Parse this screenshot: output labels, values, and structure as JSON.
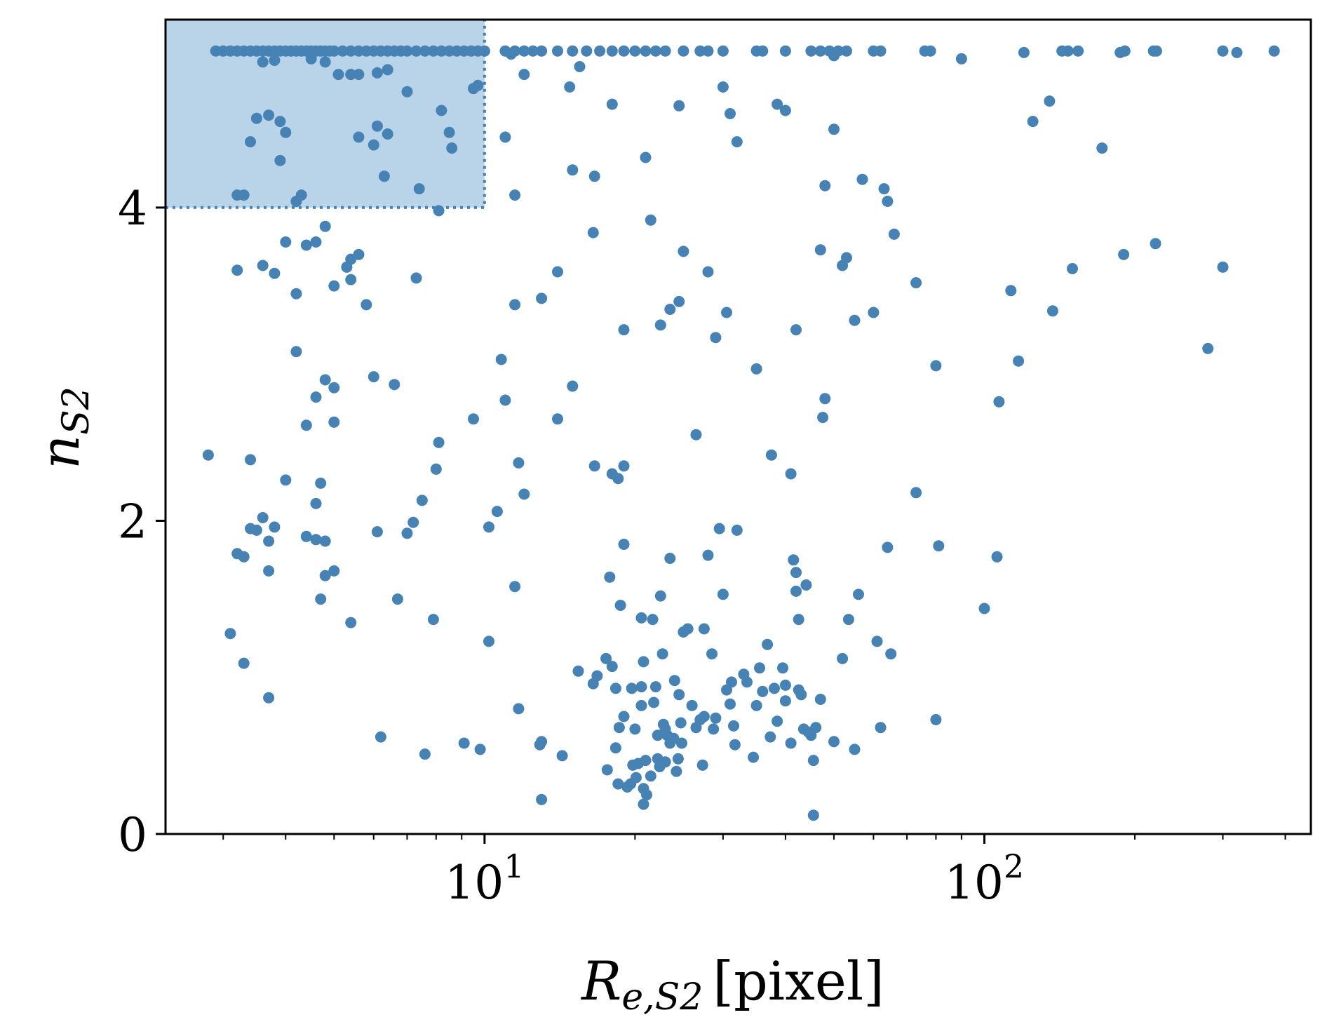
{
  "colors": {
    "points": "#4682b4",
    "region_fill": "#b9d3e8",
    "region_line": "#4682b4",
    "axis": "#000000",
    "background": "#ffffff"
  },
  "chart_data": {
    "type": "scatter",
    "xscale": "log",
    "xlim": [
      2.3,
      450
    ],
    "ylim": [
      0,
      5.2
    ],
    "grid": false,
    "legend": "none",
    "xlabel": {
      "main": "R",
      "sub": "e,S2",
      "unit": "[pixel]"
    },
    "ylabel": {
      "main": "n",
      "sub": "S2"
    },
    "xticks": [
      {
        "value": 10,
        "base": "10",
        "exp": "1"
      },
      {
        "value": 100,
        "base": "10",
        "exp": "2"
      }
    ],
    "yticks": [
      {
        "value": 0,
        "label": "0"
      },
      {
        "value": 2,
        "label": "2"
      },
      {
        "value": 4,
        "label": "4"
      }
    ],
    "highlight_region": {
      "x": [
        2.3,
        10
      ],
      "y": [
        4,
        5.2
      ]
    },
    "points": [
      [
        2.9,
        5.0
      ],
      [
        3.0,
        5.0
      ],
      [
        3.1,
        5.0
      ],
      [
        3.2,
        5.0
      ],
      [
        3.3,
        5.0
      ],
      [
        3.4,
        5.0
      ],
      [
        3.5,
        5.0
      ],
      [
        3.6,
        5.0
      ],
      [
        3.7,
        5.0
      ],
      [
        3.8,
        5.0
      ],
      [
        3.9,
        5.0
      ],
      [
        4.0,
        5.0
      ],
      [
        4.1,
        5.0
      ],
      [
        4.2,
        5.0
      ],
      [
        4.3,
        5.0
      ],
      [
        4.4,
        5.0
      ],
      [
        4.5,
        5.0
      ],
      [
        4.6,
        5.0
      ],
      [
        4.7,
        5.0
      ],
      [
        4.8,
        5.0
      ],
      [
        4.9,
        5.0
      ],
      [
        5.0,
        5.0
      ],
      [
        5.2,
        5.0
      ],
      [
        5.4,
        5.0
      ],
      [
        5.6,
        5.0
      ],
      [
        5.8,
        5.0
      ],
      [
        6.0,
        5.0
      ],
      [
        6.2,
        5.0
      ],
      [
        6.4,
        5.0
      ],
      [
        6.6,
        5.0
      ],
      [
        6.8,
        5.0
      ],
      [
        7.0,
        5.0
      ],
      [
        7.3,
        5.0
      ],
      [
        7.6,
        5.0
      ],
      [
        7.9,
        5.0
      ],
      [
        8.2,
        5.0
      ],
      [
        8.5,
        5.0
      ],
      [
        8.8,
        5.0
      ],
      [
        9.1,
        5.0
      ],
      [
        9.4,
        5.0
      ],
      [
        9.7,
        5.0
      ],
      [
        10.0,
        5.0
      ],
      [
        11.0,
        5.0
      ],
      [
        11.5,
        5.0
      ],
      [
        12.0,
        5.0
      ],
      [
        12.5,
        5.0
      ],
      [
        13.0,
        5.0
      ],
      [
        14.0,
        5.0
      ],
      [
        15.0,
        5.0
      ],
      [
        16.0,
        5.0
      ],
      [
        17.0,
        5.0
      ],
      [
        18.0,
        5.0
      ],
      [
        19.0,
        5.0
      ],
      [
        20.0,
        5.0
      ],
      [
        21.0,
        5.0
      ],
      [
        22.0,
        5.0
      ],
      [
        23.0,
        5.0
      ],
      [
        25.0,
        5.0
      ],
      [
        27.0,
        5.0
      ],
      [
        28.0,
        5.0
      ],
      [
        30.0,
        5.0
      ],
      [
        35.0,
        5.0
      ],
      [
        36.0,
        5.0
      ],
      [
        40.0,
        5.0
      ],
      [
        45.0,
        5.0
      ],
      [
        47.0,
        5.0
      ],
      [
        49.0,
        5.0
      ],
      [
        51.0,
        5.0
      ],
      [
        53.0,
        5.0
      ],
      [
        60.0,
        5.0
      ],
      [
        62.0,
        5.0
      ],
      [
        76.0,
        5.0
      ],
      [
        78.0,
        5.0
      ],
      [
        120.0,
        4.99
      ],
      [
        143.0,
        5.0
      ],
      [
        147.0,
        5.0
      ],
      [
        154.0,
        5.0
      ],
      [
        187.0,
        4.99
      ],
      [
        191.0,
        5.0
      ],
      [
        218.0,
        5.0
      ],
      [
        221.0,
        5.0
      ],
      [
        300.0,
        5.0
      ],
      [
        320.0,
        4.99
      ],
      [
        380.0,
        5.0
      ],
      [
        3.6,
        4.93
      ],
      [
        3.8,
        4.94
      ],
      [
        4.5,
        4.95
      ],
      [
        4.8,
        4.93
      ],
      [
        5.1,
        4.85
      ],
      [
        5.4,
        4.85
      ],
      [
        5.6,
        4.85
      ],
      [
        6.1,
        4.86
      ],
      [
        6.4,
        4.88
      ],
      [
        9.5,
        4.76
      ],
      [
        9.7,
        4.78
      ],
      [
        11.3,
        4.98
      ],
      [
        12.0,
        4.85
      ],
      [
        14.8,
        4.77
      ],
      [
        15.5,
        4.9
      ],
      [
        50.0,
        4.97
      ],
      [
        90.0,
        4.95
      ],
      [
        3.5,
        4.57
      ],
      [
        3.7,
        4.59
      ],
      [
        3.9,
        4.55
      ],
      [
        4.0,
        4.48
      ],
      [
        5.6,
        4.45
      ],
      [
        6.0,
        4.4
      ],
      [
        6.1,
        4.52
      ],
      [
        6.3,
        4.2
      ],
      [
        6.4,
        4.47
      ],
      [
        7.0,
        4.74
      ],
      [
        8.2,
        4.62
      ],
      [
        8.5,
        4.48
      ],
      [
        8.6,
        4.38
      ],
      [
        3.2,
        4.08
      ],
      [
        3.3,
        4.08
      ],
      [
        3.4,
        4.42
      ],
      [
        3.9,
        4.3
      ],
      [
        4.2,
        4.04
      ],
      [
        4.3,
        4.08
      ],
      [
        7.4,
        4.12
      ],
      [
        8.1,
        3.98
      ],
      [
        11.0,
        4.45
      ],
      [
        11.5,
        4.08
      ],
      [
        15.0,
        4.24
      ],
      [
        16.6,
        4.2
      ],
      [
        18.0,
        4.66
      ],
      [
        21.0,
        4.32
      ],
      [
        24.5,
        4.65
      ],
      [
        30.0,
        4.77
      ],
      [
        31.0,
        4.6
      ],
      [
        32.0,
        4.42
      ],
      [
        38.5,
        4.66
      ],
      [
        40.0,
        4.62
      ],
      [
        48.0,
        4.14
      ],
      [
        50.0,
        4.5
      ],
      [
        57.0,
        4.18
      ],
      [
        63.0,
        4.12
      ],
      [
        64.0,
        4.04
      ],
      [
        125.0,
        4.55
      ],
      [
        135.0,
        4.68
      ],
      [
        172.0,
        4.38
      ],
      [
        3.2,
        3.6
      ],
      [
        3.6,
        3.63
      ],
      [
        3.8,
        3.58
      ],
      [
        4.0,
        3.78
      ],
      [
        4.2,
        3.45
      ],
      [
        4.4,
        3.76
      ],
      [
        4.6,
        3.78
      ],
      [
        4.8,
        3.88
      ],
      [
        5.0,
        3.5
      ],
      [
        5.3,
        3.62
      ],
      [
        5.4,
        3.67
      ],
      [
        5.6,
        3.7
      ],
      [
        5.8,
        3.38
      ],
      [
        5.4,
        3.54
      ],
      [
        7.3,
        3.55
      ],
      [
        11.5,
        3.38
      ],
      [
        13.0,
        3.42
      ],
      [
        14.0,
        3.59
      ],
      [
        16.5,
        3.84
      ],
      [
        19.0,
        3.22
      ],
      [
        21.5,
        3.92
      ],
      [
        22.5,
        3.25
      ],
      [
        23.5,
        3.35
      ],
      [
        24.5,
        3.4
      ],
      [
        25.0,
        3.72
      ],
      [
        28.0,
        3.59
      ],
      [
        29.0,
        3.17
      ],
      [
        30.5,
        3.33
      ],
      [
        35.0,
        2.97
      ],
      [
        42.0,
        3.22
      ],
      [
        47.0,
        3.73
      ],
      [
        52.0,
        3.63
      ],
      [
        53.0,
        3.68
      ],
      [
        55.0,
        3.28
      ],
      [
        60.0,
        3.33
      ],
      [
        66.0,
        3.83
      ],
      [
        73.0,
        3.52
      ],
      [
        80.0,
        2.99
      ],
      [
        113.0,
        3.47
      ],
      [
        117.0,
        3.02
      ],
      [
        137.0,
        3.34
      ],
      [
        150.0,
        3.61
      ],
      [
        190.0,
        3.7
      ],
      [
        220.0,
        3.77
      ],
      [
        300.0,
        3.62
      ],
      [
        280.0,
        3.1
      ],
      [
        2.8,
        2.42
      ],
      [
        3.4,
        2.39
      ],
      [
        4.0,
        2.26
      ],
      [
        4.2,
        3.08
      ],
      [
        4.4,
        2.61
      ],
      [
        4.6,
        2.79
      ],
      [
        4.8,
        2.9
      ],
      [
        5.0,
        2.63
      ],
      [
        5.0,
        2.85
      ],
      [
        6.0,
        2.92
      ],
      [
        6.6,
        2.87
      ],
      [
        8.0,
        2.33
      ],
      [
        8.1,
        2.5
      ],
      [
        7.5,
        2.13
      ],
      [
        9.5,
        2.65
      ],
      [
        10.8,
        3.03
      ],
      [
        11.0,
        2.77
      ],
      [
        11.7,
        2.37
      ],
      [
        12.0,
        2.17
      ],
      [
        14.0,
        2.65
      ],
      [
        15.0,
        2.86
      ],
      [
        16.6,
        2.35
      ],
      [
        18.0,
        2.3
      ],
      [
        18.5,
        2.27
      ],
      [
        19.0,
        2.35
      ],
      [
        26.5,
        2.55
      ],
      [
        37.5,
        2.42
      ],
      [
        41.0,
        2.3
      ],
      [
        47.5,
        2.66
      ],
      [
        48.0,
        2.78
      ],
      [
        73.0,
        2.18
      ],
      [
        107.0,
        2.76
      ],
      [
        3.2,
        1.79
      ],
      [
        3.3,
        1.77
      ],
      [
        3.4,
        1.95
      ],
      [
        3.5,
        1.94
      ],
      [
        3.6,
        2.02
      ],
      [
        3.7,
        1.87
      ],
      [
        3.8,
        1.96
      ],
      [
        3.7,
        1.68
      ],
      [
        4.4,
        1.9
      ],
      [
        4.6,
        1.88
      ],
      [
        4.8,
        1.87
      ],
      [
        4.8,
        1.65
      ],
      [
        5.0,
        1.68
      ],
      [
        4.6,
        2.11
      ],
      [
        4.7,
        2.24
      ],
      [
        6.1,
        1.93
      ],
      [
        7.0,
        1.92
      ],
      [
        7.2,
        1.99
      ],
      [
        10.2,
        1.96
      ],
      [
        10.6,
        2.06
      ],
      [
        11.5,
        1.58
      ],
      [
        19.0,
        1.85
      ],
      [
        3.1,
        1.28
      ],
      [
        3.3,
        1.09
      ],
      [
        3.7,
        0.87
      ],
      [
        4.7,
        1.5
      ],
      [
        5.4,
        1.35
      ],
      [
        6.7,
        1.5
      ],
      [
        7.9,
        1.37
      ],
      [
        10.2,
        1.23
      ],
      [
        11.7,
        0.8
      ],
      [
        6.2,
        0.62
      ],
      [
        7.6,
        0.51
      ],
      [
        9.1,
        0.58
      ],
      [
        9.8,
        0.54
      ],
      [
        12.9,
        0.57
      ],
      [
        13.0,
        0.59
      ],
      [
        13.0,
        0.22
      ],
      [
        14.3,
        0.5
      ],
      [
        15.4,
        1.04
      ],
      [
        16.5,
        0.96
      ],
      [
        16.8,
        1.01
      ],
      [
        17.5,
        1.12
      ],
      [
        17.6,
        0.41
      ],
      [
        17.8,
        1.64
      ],
      [
        18.0,
        1.07
      ],
      [
        18.3,
        0.93
      ],
      [
        18.3,
        0.55
      ],
      [
        18.5,
        0.32
      ],
      [
        18.6,
        0.68
      ],
      [
        18.7,
        1.46
      ],
      [
        19.0,
        0.75
      ],
      [
        19.3,
        0.3
      ],
      [
        19.6,
        0.32
      ],
      [
        19.7,
        0.93
      ],
      [
        19.8,
        0.44
      ],
      [
        20.0,
        0.67
      ],
      [
        20.1,
        0.36
      ],
      [
        20.3,
        0.45
      ],
      [
        20.6,
        1.38
      ],
      [
        20.8,
        1.1
      ],
      [
        20.6,
        0.82
      ],
      [
        20.6,
        0.94
      ],
      [
        20.8,
        0.29
      ],
      [
        20.8,
        0.19
      ],
      [
        21.0,
        0.47
      ],
      [
        21.1,
        0.25
      ],
      [
        21.5,
        0.37
      ],
      [
        21.7,
        1.37
      ],
      [
        21.8,
        0.84
      ],
      [
        22.0,
        0.94
      ],
      [
        22.2,
        0.63
      ],
      [
        22.2,
        0.48
      ],
      [
        22.4,
        0.43
      ],
      [
        22.5,
        1.52
      ],
      [
        22.7,
        1.15
      ],
      [
        22.8,
        0.7
      ],
      [
        23.0,
        0.46
      ],
      [
        23.0,
        0.67
      ],
      [
        23.2,
        0.63
      ],
      [
        23.5,
        0.58
      ],
      [
        23.5,
        1.76
      ],
      [
        23.9,
        0.61
      ],
      [
        24.0,
        0.98
      ],
      [
        24.2,
        0.4
      ],
      [
        24.4,
        0.48
      ],
      [
        24.5,
        0.89
      ],
      [
        24.7,
        0.71
      ],
      [
        24.8,
        0.58
      ],
      [
        25.0,
        1.29
      ],
      [
        25.5,
        1.31
      ],
      [
        26.0,
        0.82
      ],
      [
        26.5,
        0.68
      ],
      [
        27.0,
        0.73
      ],
      [
        27.3,
        0.44
      ],
      [
        27.5,
        0.75
      ],
      [
        27.5,
        1.31
      ],
      [
        28.0,
        1.78
      ],
      [
        28.5,
        1.15
      ],
      [
        28.7,
        0.67
      ],
      [
        29.0,
        0.74
      ],
      [
        29.5,
        1.95
      ],
      [
        30.0,
        1.53
      ],
      [
        30.5,
        0.92
      ],
      [
        31.0,
        0.83
      ],
      [
        31.2,
        0.97
      ],
      [
        31.5,
        0.69
      ],
      [
        31.7,
        0.57
      ],
      [
        32.0,
        1.94
      ],
      [
        33.0,
        1.02
      ],
      [
        33.5,
        0.97
      ],
      [
        34.5,
        0.49
      ],
      [
        35.0,
        0.82
      ],
      [
        35.5,
        1.06
      ],
      [
        36.0,
        0.91
      ],
      [
        36.8,
        1.21
      ],
      [
        37.3,
        0.62
      ],
      [
        38.0,
        0.93
      ],
      [
        38.5,
        0.72
      ],
      [
        39.5,
        1.06
      ],
      [
        40.0,
        0.95
      ],
      [
        40.0,
        0.85
      ],
      [
        41.0,
        0.58
      ],
      [
        41.5,
        1.75
      ],
      [
        42.0,
        1.55
      ],
      [
        42.0,
        1.67
      ],
      [
        42.5,
        0.92
      ],
      [
        42.5,
        1.37
      ],
      [
        43.0,
        0.89
      ],
      [
        43.5,
        0.67
      ],
      [
        44.0,
        1.59
      ],
      [
        44.5,
        0.65
      ],
      [
        45.0,
        0.63
      ],
      [
        45.5,
        0.12
      ],
      [
        45.5,
        0.47
      ],
      [
        46.0,
        0.68
      ],
      [
        47.0,
        0.86
      ],
      [
        50.0,
        0.59
      ],
      [
        52.0,
        1.12
      ],
      [
        53.5,
        1.37
      ],
      [
        55.0,
        0.54
      ],
      [
        56.0,
        1.53
      ],
      [
        61.0,
        1.23
      ],
      [
        62.0,
        0.68
      ],
      [
        64.0,
        1.83
      ],
      [
        65.0,
        1.15
      ],
      [
        80.0,
        0.73
      ],
      [
        81.0,
        1.84
      ],
      [
        100.0,
        1.44
      ],
      [
        106.0,
        1.77
      ]
    ]
  }
}
